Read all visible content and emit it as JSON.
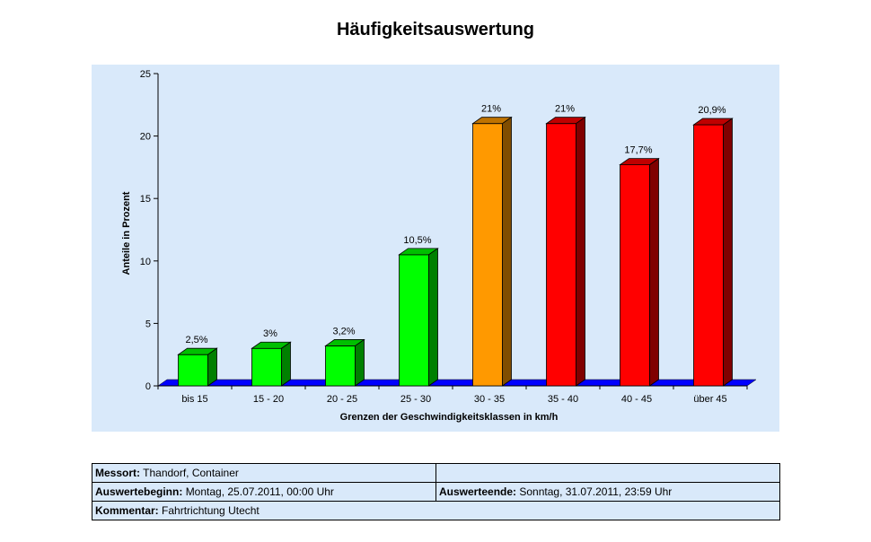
{
  "chart_data": {
    "type": "bar",
    "title": "Häufigkeitsauswertung",
    "xlabel": "Grenzen der Geschwindigkeitsklassen in km/h",
    "ylabel": "Anteile in Prozent",
    "ylim": [
      0,
      25
    ],
    "yticks": [
      0,
      5,
      10,
      15,
      20,
      25
    ],
    "categories": [
      "bis 15",
      "15 - 20",
      "20 - 25",
      "25 - 30",
      "30 - 35",
      "35 - 40",
      "40 - 45",
      "über 45"
    ],
    "values": [
      2.5,
      3,
      3.2,
      10.5,
      21,
      21,
      17.7,
      20.9
    ],
    "data_labels": [
      "2,5%",
      "3%",
      "3,2%",
      "10,5%",
      "21%",
      "21%",
      "17,7%",
      "20,9%"
    ],
    "bar_colors": [
      "#00ff00",
      "#00ff00",
      "#00ff00",
      "#00ff00",
      "#ff9900",
      "#ff0000",
      "#ff0000",
      "#ff0000"
    ],
    "floor_color": "#0000ff",
    "grid": false
  },
  "info": {
    "messort_label": "Messort:",
    "messort_value": "Thandorf, Container",
    "beginn_label": "Auswertebeginn:",
    "beginn_value": "Montag, 25.07.2011, 00:00 Uhr",
    "ende_label": "Auswerteende:",
    "ende_value": "Sonntag, 31.07.2011, 23:59 Uhr",
    "kommentar_label": "Kommentar:",
    "kommentar_value": "Fahrtrichtung Utecht"
  }
}
